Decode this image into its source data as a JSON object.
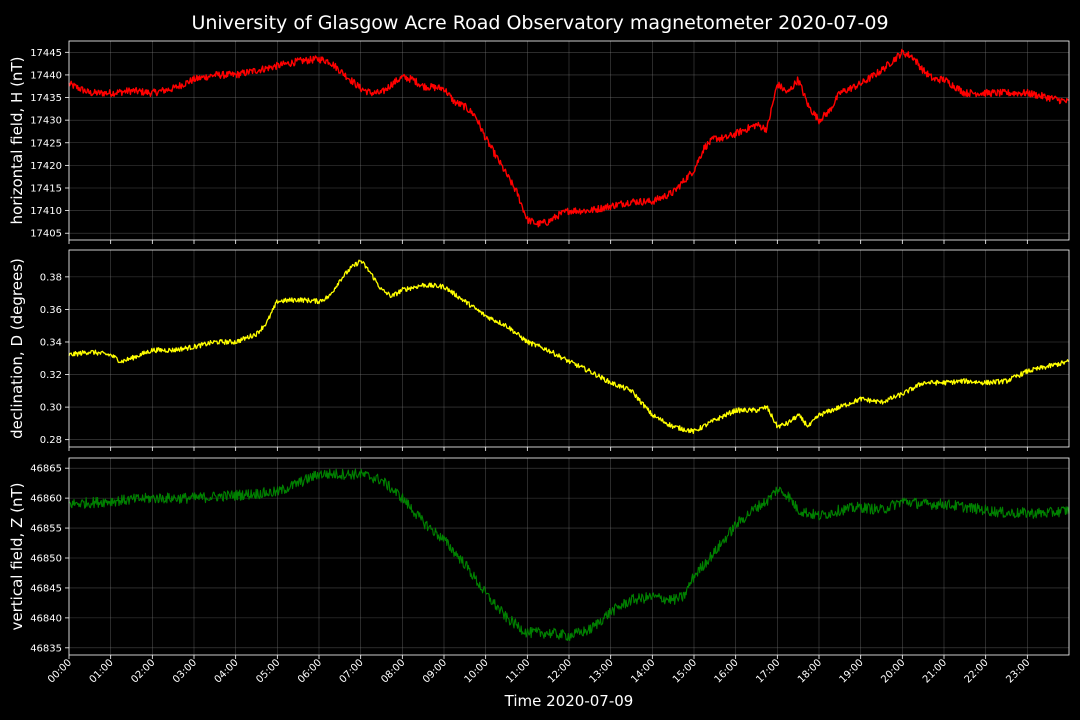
{
  "chart_data": {
    "type": "line",
    "title": "University of Glasgow Acre Road Observatory magnetometer 2020-07-09",
    "xlabel": "Time 2020-07-09",
    "x_unit": "hours",
    "xlim": [
      0,
      24
    ],
    "x_ticks": [
      "00:00",
      "01:00",
      "02:00",
      "03:00",
      "04:00",
      "05:00",
      "06:00",
      "07:00",
      "08:00",
      "09:00",
      "10:00",
      "11:00",
      "12:00",
      "13:00",
      "14:00",
      "15:00",
      "16:00",
      "17:00",
      "18:00",
      "19:00",
      "20:00",
      "21:00",
      "22:00",
      "23:00"
    ],
    "grid": true,
    "background": "#000000",
    "panels": [
      {
        "ylabel": "horizontal field, H (nT)",
        "color": "#ff0000",
        "ylim": [
          17403.5,
          17447.5
        ],
        "y_ticks": [
          17405,
          17410,
          17415,
          17420,
          17425,
          17430,
          17435,
          17440,
          17445
        ],
        "tick_decimals": 0,
        "noise": 0.8,
        "line_width": 1.4,
        "series": {
          "x": [
            0,
            0.5,
            1,
            1.5,
            2,
            2.5,
            3,
            3.5,
            4,
            4.5,
            5,
            5.5,
            6,
            6.25,
            6.5,
            7,
            7.25,
            7.5,
            7.75,
            8,
            8.25,
            8.5,
            9,
            9.25,
            9.5,
            9.75,
            10,
            10.25,
            10.5,
            10.75,
            11,
            11.25,
            11.5,
            11.75,
            12,
            12.5,
            13,
            13.5,
            14,
            14.5,
            15,
            15.25,
            15.5,
            15.75,
            16,
            16.25,
            16.5,
            16.75,
            17,
            17.25,
            17.5,
            17.75,
            18,
            18.25,
            18.5,
            18.75,
            19,
            19.5,
            20,
            20.25,
            20.5,
            20.75,
            21,
            21.5,
            22,
            22.5,
            23,
            23.5,
            24
          ],
          "y": [
            17438,
            17436,
            17436,
            17436.5,
            17436,
            17437,
            17439,
            17440,
            17440,
            17441,
            17442,
            17443,
            17443.5,
            17443,
            17441,
            17437,
            17436,
            17436,
            17438,
            17439.5,
            17439,
            17437.5,
            17437,
            17434,
            17433,
            17431,
            17426,
            17422,
            17418,
            17414,
            17408,
            17407,
            17407.5,
            17409,
            17410,
            17410,
            17411,
            17412,
            17412,
            17414,
            17419,
            17424,
            17426,
            17426,
            17427,
            17428,
            17429,
            17428,
            17438,
            17436,
            17439,
            17433,
            17430,
            17432,
            17436,
            17437,
            17438,
            17441,
            17445,
            17444,
            17441,
            17439,
            17439,
            17436,
            17436,
            17436,
            17436,
            17435,
            17434
          ]
        }
      },
      {
        "ylabel": "declination, D (degrees)",
        "color": "#ffff00",
        "ylim": [
          0.2755,
          0.3965
        ],
        "y_ticks": [
          0.28,
          0.3,
          0.32,
          0.34,
          0.36,
          0.38
        ],
        "tick_decimals": 2,
        "noise": 0.0015,
        "line_width": 1.3,
        "series": {
          "x": [
            0,
            0.5,
            1,
            1.25,
            1.5,
            2,
            2.5,
            3,
            3.5,
            4,
            4.5,
            4.75,
            5,
            5.5,
            6,
            6.25,
            6.5,
            6.75,
            7,
            7.25,
            7.5,
            7.75,
            8,
            8.5,
            9,
            9.5,
            10,
            10.5,
            11,
            11.5,
            12,
            12.5,
            13,
            13.5,
            14,
            14.5,
            15,
            15.5,
            16,
            16.5,
            16.75,
            17,
            17.25,
            17.5,
            17.75,
            18,
            18.5,
            19,
            19.5,
            20,
            20.5,
            21,
            21.5,
            22,
            22.5,
            23,
            23.5,
            24
          ],
          "y": [
            0.332,
            0.334,
            0.332,
            0.328,
            0.33,
            0.335,
            0.335,
            0.337,
            0.34,
            0.34,
            0.345,
            0.352,
            0.365,
            0.366,
            0.365,
            0.368,
            0.378,
            0.385,
            0.39,
            0.382,
            0.372,
            0.368,
            0.372,
            0.375,
            0.374,
            0.365,
            0.356,
            0.35,
            0.34,
            0.335,
            0.328,
            0.322,
            0.315,
            0.31,
            0.295,
            0.288,
            0.285,
            0.292,
            0.298,
            0.298,
            0.3,
            0.288,
            0.29,
            0.295,
            0.288,
            0.295,
            0.3,
            0.305,
            0.303,
            0.308,
            0.315,
            0.315,
            0.316,
            0.315,
            0.316,
            0.322,
            0.325,
            0.328
          ]
        }
      },
      {
        "ylabel": "vertical field, Z (nT)",
        "color": "#008000",
        "ylim": [
          46833.8,
          46866.7
        ],
        "y_ticks": [
          46835,
          46840,
          46845,
          46850,
          46855,
          46860,
          46865
        ],
        "tick_decimals": 0,
        "noise": 0.9,
        "line_width": 1.1,
        "series": {
          "x": [
            0,
            1,
            2,
            3,
            4,
            5,
            5.5,
            6,
            6.5,
            7,
            7.5,
            8,
            8.5,
            9,
            9.5,
            10,
            10.5,
            11,
            11.5,
            12,
            12.5,
            13,
            13.5,
            14,
            14.5,
            14.75,
            15,
            15.5,
            16,
            16.5,
            16.75,
            17,
            17.25,
            17.5,
            18,
            18.5,
            19,
            19.5,
            20,
            20.5,
            21,
            21.5,
            22,
            22.5,
            23,
            23.5,
            24
          ],
          "y": [
            46859,
            46859.5,
            46860,
            46860,
            46860.5,
            46861,
            46862.5,
            46864,
            46864,
            46864,
            46863,
            46860,
            46856,
            46853,
            46849,
            46844,
            46840,
            46837.5,
            46837.5,
            46837,
            46838,
            46841,
            46843,
            46843.5,
            46843,
            46843.5,
            46847,
            46851,
            46855.5,
            46858.5,
            46859.5,
            46861.5,
            46860.5,
            46858,
            46857,
            46858,
            46858.5,
            46858,
            46859.5,
            46859,
            46859,
            46858.5,
            46858,
            46857.5,
            46857.5,
            46857.5,
            46858
          ]
        }
      }
    ]
  }
}
